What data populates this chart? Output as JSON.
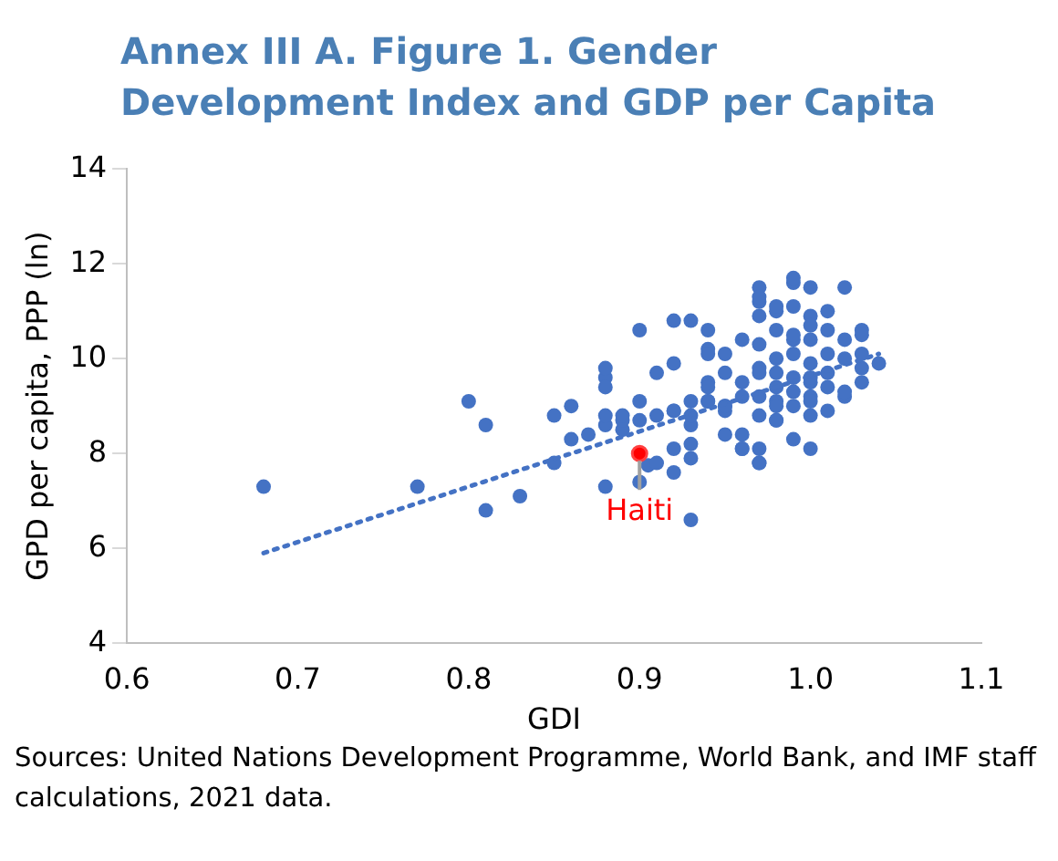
{
  "chart_data": {
    "type": "scatter",
    "title": "Annex III A. Figure 1. Gender Development Index and GDP per Capita",
    "xlabel": "GDI",
    "ylabel": "GPD per capita, PPP (ln)",
    "annotations": [
      "Sources: United Nations Development Programme, World Bank, and IMF staff calculations, 2021 data."
    ],
    "xlim": [
      0.6,
      1.1
    ],
    "xticks": [
      {
        "value": 0.6,
        "label": "0.6"
      },
      {
        "value": 0.7,
        "label": "0.7"
      },
      {
        "value": 0.8,
        "label": "0.8"
      },
      {
        "value": 0.9,
        "label": "0.9"
      },
      {
        "value": 1.0,
        "label": "1.0"
      },
      {
        "value": 1.1,
        "label": "1.1"
      }
    ],
    "ylim": [
      4,
      14
    ],
    "yticks": [
      4,
      6,
      8,
      10,
      12,
      14
    ],
    "grid": false,
    "legend": false,
    "marker": "circle",
    "series": [
      {
        "color": "#4472c4",
        "x": [
          0.68,
          0.77,
          0.8,
          0.81,
          0.81,
          0.83,
          0.85,
          0.85,
          0.86,
          0.86,
          0.87,
          0.88,
          0.88,
          0.88,
          0.89,
          0.88,
          0.9,
          0.905,
          0.91,
          0.9,
          0.9,
          0.92,
          0.93,
          0.9,
          0.91,
          0.92,
          0.92,
          0.93,
          0.93,
          0.94,
          0.93,
          0.92,
          0.92,
          0.93,
          0.93,
          0.92,
          0.94,
          0.94,
          0.94,
          0.94,
          0.95,
          0.94,
          0.95,
          0.95,
          0.95,
          0.96,
          0.96,
          0.96,
          0.97,
          0.97,
          0.97,
          0.98,
          0.96,
          0.97,
          0.97,
          0.97,
          0.99,
          0.99,
          1.0,
          1.02,
          0.97,
          0.98,
          0.98,
          0.99,
          1.0,
          1.0,
          1.0,
          1.01,
          1.01,
          1.01,
          1.02,
          1.03,
          1.03,
          1.03,
          1.02,
          1.03,
          1.04,
          1.03,
          0.97,
          0.97,
          0.98,
          0.98,
          0.98,
          0.99,
          0.99,
          1.0,
          1.0,
          1.0,
          1.01,
          1.01,
          1.02,
          0.98,
          0.99,
          1.0,
          1.0,
          1.02,
          0.97,
          0.98,
          1.0,
          0.99,
          1.0,
          0.98,
          0.96,
          0.96,
          0.95,
          0.99,
          0.99,
          0.99,
          0.97,
          0.98,
          0.91,
          0.88,
          0.94,
          0.95,
          0.97,
          1.01,
          0.88,
          0.89,
          0.89,
          0.93
        ],
        "values": [
          7.3,
          7.3,
          9.1,
          8.6,
          6.8,
          7.1,
          8.8,
          7.8,
          9.0,
          8.3,
          8.4,
          9.6,
          9.4,
          8.6,
          8.5,
          7.3,
          7.4,
          7.75,
          7.8,
          9.1,
          10.6,
          10.8,
          10.8,
          8.7,
          8.8,
          8.9,
          8.9,
          8.6,
          8.8,
          9.1,
          8.2,
          8.1,
          7.6,
          7.9,
          6.6,
          9.9,
          10.2,
          10.6,
          9.5,
          9.4,
          9.7,
          9.1,
          9.0,
          8.9,
          8.4,
          8.4,
          8.1,
          8.1,
          7.8,
          8.1,
          7.8,
          8.7,
          10.4,
          11.2,
          11.5,
          11.3,
          11.6,
          11.7,
          11.5,
          11.5,
          10.9,
          10.6,
          11.0,
          11.1,
          10.9,
          10.4,
          10.7,
          10.6,
          11.0,
          10.1,
          10.4,
          10.6,
          10.5,
          10.1,
          10.0,
          9.8,
          9.9,
          9.5,
          9.8,
          9.2,
          9.4,
          10.0,
          9.7,
          9.6,
          9.3,
          9.9,
          9.5,
          9.6,
          9.7,
          9.4,
          9.2,
          9.1,
          9.0,
          9.2,
          9.1,
          9.3,
          8.8,
          8.7,
          8.8,
          8.3,
          8.1,
          9.0,
          9.2,
          9.5,
          10.1,
          10.4,
          10.1,
          10.5,
          10.3,
          11.1,
          9.7,
          9.8,
          10.1,
          9.0,
          9.7,
          8.9,
          8.8,
          8.7,
          8.8,
          9.1
        ]
      },
      {
        "type": "line",
        "color": "#4472c4",
        "marker": "none",
        "line_style": "dotted",
        "x": [
          0.68,
          1.04
        ],
        "values": [
          5.9,
          10.1
        ]
      },
      {
        "name": "Haiti",
        "color": "#ff0000",
        "x": [
          0.9
        ],
        "values": [
          8.0
        ]
      }
    ]
  }
}
